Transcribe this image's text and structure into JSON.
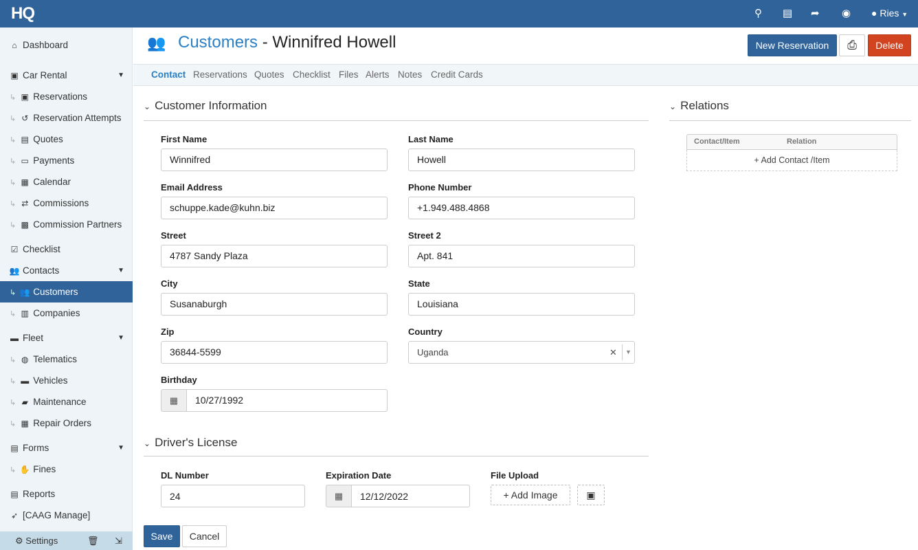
{
  "topbar": {
    "logo": "HQ",
    "icons": [
      "search-icon",
      "gift-icon",
      "rocket-icon",
      "question-icon"
    ],
    "user": "Ries",
    "brand_color": "#2f6399"
  },
  "sidebar": {
    "items": [
      {
        "label": "Dashboard",
        "icon": "home-icon",
        "glyph": "⌂",
        "sub": false
      },
      {
        "label": "Car Rental",
        "icon": "calendar-check-icon",
        "glyph": "▣",
        "sub": false,
        "caret": true
      },
      {
        "label": "Reservations",
        "icon": "calendar-check-icon",
        "glyph": "▣",
        "sub": true
      },
      {
        "label": "Reservation Attempts",
        "icon": "history-icon",
        "glyph": "↺",
        "sub": true
      },
      {
        "label": "Quotes",
        "icon": "pdf-file-icon",
        "glyph": "▤",
        "sub": true
      },
      {
        "label": "Payments",
        "icon": "money-icon",
        "glyph": "▭",
        "sub": true
      },
      {
        "label": "Calendar",
        "icon": "calendar-icon",
        "glyph": "▦",
        "sub": true
      },
      {
        "label": "Commissions",
        "icon": "exchange-icon",
        "glyph": "⇄",
        "sub": true
      },
      {
        "label": "Commission Partners",
        "icon": "bus-icon",
        "glyph": "▩",
        "sub": true
      },
      {
        "label": "Checklist",
        "icon": "checkbox-icon",
        "glyph": "☑",
        "sub": false
      },
      {
        "label": "Contacts",
        "icon": "users-icon",
        "glyph": "👥",
        "sub": false,
        "caret": true
      },
      {
        "label": "Customers",
        "icon": "users-icon",
        "glyph": "👥",
        "sub": true,
        "active": true
      },
      {
        "label": "Companies",
        "icon": "building-icon",
        "glyph": "▥",
        "sub": true
      },
      {
        "label": "Fleet",
        "icon": "car-icon",
        "glyph": "▬",
        "sub": false,
        "caret": true
      },
      {
        "label": "Telematics",
        "icon": "globe-icon",
        "glyph": "◍",
        "sub": true
      },
      {
        "label": "Vehicles",
        "icon": "car-icon",
        "glyph": "▬",
        "sub": true
      },
      {
        "label": "Maintenance",
        "icon": "truck-icon",
        "glyph": "▰",
        "sub": true
      },
      {
        "label": "Repair Orders",
        "icon": "hospital-icon",
        "glyph": "▦",
        "sub": true
      },
      {
        "label": "Forms",
        "icon": "file-icon",
        "glyph": "▤",
        "sub": false,
        "caret": true
      },
      {
        "label": "Fines",
        "icon": "hand-icon",
        "glyph": "✋",
        "sub": true
      },
      {
        "label": "Reports",
        "icon": "pdf-icon",
        "glyph": "▤",
        "sub": false
      },
      {
        "label": "[CAAG Manage]",
        "icon": "rocket-icon",
        "glyph": "➶",
        "sub": false
      }
    ],
    "settings": "Settings"
  },
  "header": {
    "section": "Customers",
    "separator": " - ",
    "name": "Winnifred Howell",
    "new_reservation": "New Reservation",
    "delete": "Delete",
    "delete_color": "#d2431f"
  },
  "tabs": [
    "Contact",
    "Reservations",
    "Quotes",
    "Checklist",
    "Files",
    "Alerts",
    "Notes",
    "Credit Cards"
  ],
  "customer": {
    "title": "Customer Information",
    "fields": [
      {
        "label": "First Name",
        "value": "Winnifred"
      },
      {
        "label": "Last Name",
        "value": "Howell"
      },
      {
        "label": "Email Address",
        "value": "schuppe.kade@kuhn.biz"
      },
      {
        "label": "Phone Number",
        "value": "+1.949.488.4868"
      },
      {
        "label": "Street",
        "value": "4787 Sandy Plaza"
      },
      {
        "label": "Street 2",
        "value": "Apt. 841"
      },
      {
        "label": "City",
        "value": "Susanaburgh"
      },
      {
        "label": "State",
        "value": "Louisiana"
      },
      {
        "label": "Zip",
        "value": "36844-5599"
      },
      {
        "label": "Country",
        "value": "Uganda"
      },
      {
        "label": "Birthday",
        "value": "10/27/1992"
      }
    ]
  },
  "relations": {
    "title": "Relations",
    "col1": "Contact/Item",
    "col2": "Relation",
    "add": "+ Add Contact /Item"
  },
  "license": {
    "title": "Driver's License",
    "dl_label": "DL Number",
    "dl_value": "24",
    "exp_label": "Expiration Date",
    "exp_value": "12/12/2022",
    "upload_label": "File Upload",
    "add_image": "+ Add Image"
  },
  "actions": {
    "save": "Save",
    "cancel": "Cancel"
  }
}
